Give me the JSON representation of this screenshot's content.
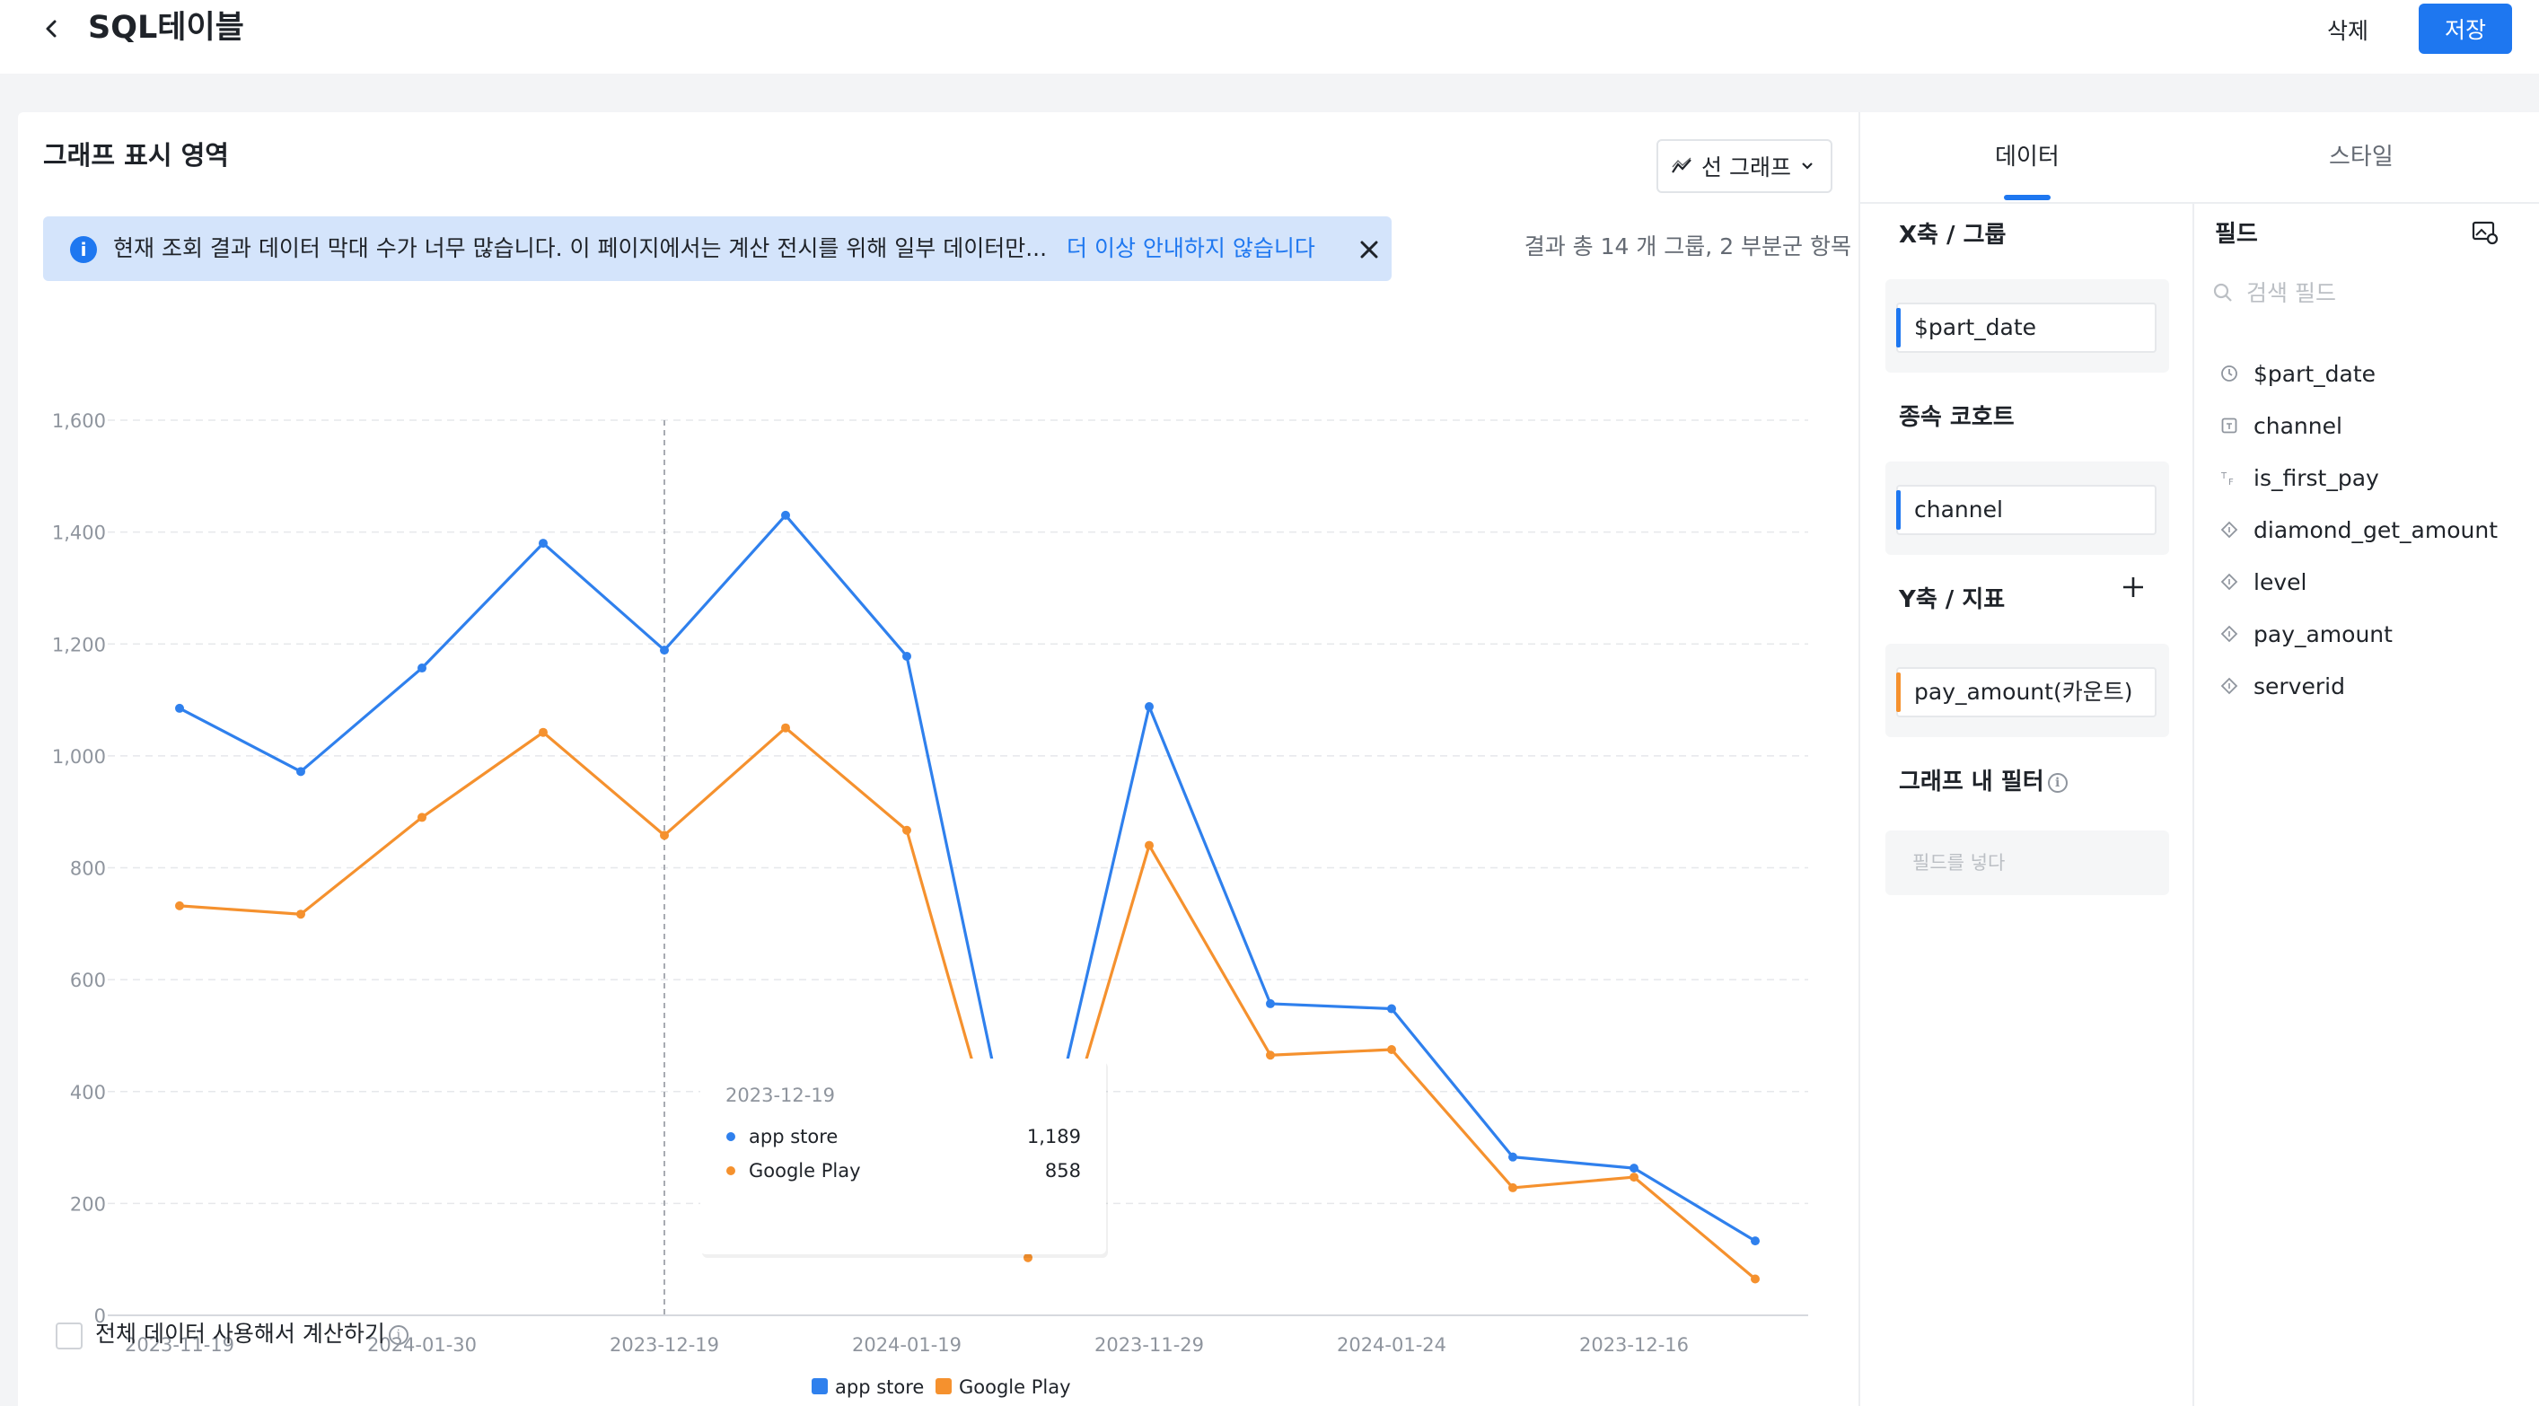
{
  "header": {
    "title": "SQL테이블",
    "delete_label": "삭제",
    "save_label": "저장"
  },
  "main": {
    "area_title": "그래프 표시 영역",
    "chart_type": "선 그래프",
    "notice": {
      "text": "현재 조회 결과 데이터 막대 수가 너무 많습니다. 이 페이지에서는 계산 전시를 위해 일부 데이터만...",
      "link": "더 이상 안내하지 않습니다"
    },
    "result_summary": "결과 총 14 개 그룹, 2 부분군 항목",
    "calc_all_label": "전체 데이터 사용해서 계산하기",
    "calc_all_checked": false
  },
  "colors": {
    "accent": "#1e77f0",
    "series_app_store": "#2f80ed",
    "series_google_play": "#f5912e"
  },
  "chart_data": {
    "type": "line",
    "x": [
      "2023-11-19",
      "",
      "2024-01-30",
      "",
      "2023-12-19",
      "",
      "2024-01-19",
      "",
      "2023-11-29",
      "",
      "2024-01-24",
      "",
      "2023-12-16",
      ""
    ],
    "series": [
      {
        "name": "app store",
        "values": [
          1085,
          972,
          1157,
          1380,
          1189,
          1430,
          1178,
          152,
          1088,
          557,
          548,
          283,
          263,
          133
        ]
      },
      {
        "name": "Google Play",
        "values": [
          732,
          717,
          890,
          1042,
          858,
          1050,
          867,
          103,
          840,
          465,
          475,
          228,
          247,
          65
        ]
      }
    ],
    "y_ticks": [
      "1,600",
      "1,400",
      "1,200",
      "1,000",
      "800",
      "600",
      "400",
      "200",
      "0"
    ],
    "ylim": [
      0,
      1600
    ],
    "legend_position": "bottom",
    "grid": true,
    "tooltip": {
      "title": "2023-12-19",
      "rows": [
        {
          "name": "app store",
          "value": "1,189"
        },
        {
          "name": "Google Play",
          "value": "858"
        }
      ],
      "index": 4
    }
  },
  "side": {
    "tabs": [
      "데이터",
      "스타일"
    ],
    "x_axis_title": "X축 / 그룹",
    "x_axis_field": "$part_date",
    "cohort_title": "종속 코호트",
    "cohort_field": "channel",
    "y_axis_title": "Y축 / 지표",
    "y_axis_field": "pay_amount(카운트)",
    "filter_title": "그래프 내 필터",
    "filter_placeholder": "필드를 넣다",
    "fields_title": "필드",
    "search_placeholder": "검색 필드",
    "fields": [
      {
        "name": "$part_date",
        "icon": "clock-icon"
      },
      {
        "name": "channel",
        "icon": "text-field-icon"
      },
      {
        "name": "is_first_pay",
        "icon": "boolean-icon"
      },
      {
        "name": "diamond_get_amount",
        "icon": "number-icon"
      },
      {
        "name": "level",
        "icon": "number-icon"
      },
      {
        "name": "pay_amount",
        "icon": "number-icon"
      },
      {
        "name": "serverid",
        "icon": "number-icon"
      }
    ]
  }
}
